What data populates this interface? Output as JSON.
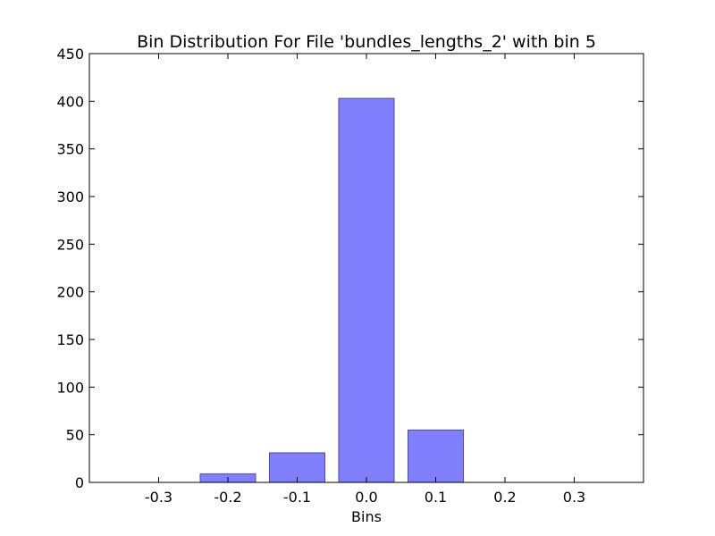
{
  "chart_data": {
    "type": "bar",
    "title": "Bin Distribution For File 'bundles_lengths_2' with bin 5",
    "xlabel": "Bins",
    "ylabel": "",
    "categories": [
      "-0.3",
      "-0.2",
      "-0.1",
      "0.0",
      "0.1",
      "0.2",
      "0.3"
    ],
    "x": [
      -0.3,
      -0.2,
      -0.1,
      0.0,
      0.1,
      0.2,
      0.3
    ],
    "values": [
      0,
      9,
      31,
      403,
      55,
      0,
      0
    ],
    "bar_width": 0.08,
    "xlim": [
      -0.4,
      0.4
    ],
    "ylim": [
      0,
      450
    ],
    "xticks": [
      "-0.3",
      "-0.2",
      "-0.1",
      "0.0",
      "0.1",
      "0.2",
      "0.3"
    ],
    "yticks": [
      "0",
      "50",
      "100",
      "150",
      "200",
      "250",
      "300",
      "350",
      "400",
      "450"
    ],
    "grid": false,
    "bar_color": "#8080ff",
    "bar_edge_color": "#4d4d99"
  }
}
